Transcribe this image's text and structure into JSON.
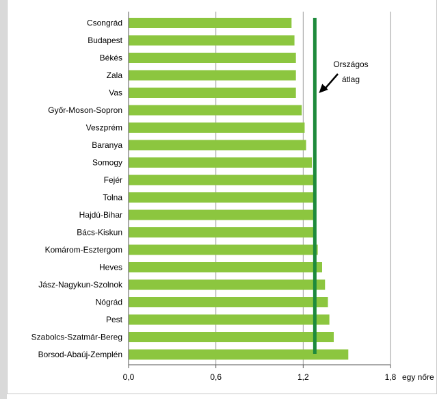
{
  "chart_data": {
    "type": "bar",
    "orientation": "horizontal",
    "categories": [
      "Csongrád",
      "Budapest",
      "Békés",
      "Zala",
      "Vas",
      "Győr-Moson-Sopron",
      "Veszprém",
      "Baranya",
      "Somogy",
      "Fejér",
      "Tolna",
      "Hajdú-Bihar",
      "Bács-Kiskun",
      "Komárom-Esztergom",
      "Heves",
      "Jász-Nagykun-Szolnok",
      "Nógrád",
      "Pest",
      "Szabolcs-Szatmár-Bereg",
      "Borsod-Abaúj-Zemplén"
    ],
    "values": [
      1.12,
      1.14,
      1.15,
      1.15,
      1.15,
      1.19,
      1.21,
      1.22,
      1.26,
      1.28,
      1.28,
      1.29,
      1.29,
      1.3,
      1.33,
      1.35,
      1.37,
      1.38,
      1.41,
      1.51
    ],
    "xlim": [
      0,
      1.8
    ],
    "x_ticks": [
      "0,0",
      "0,6",
      "1,2",
      "1,8"
    ],
    "x_tick_values": [
      0,
      0.6,
      1.2,
      1.8
    ],
    "x_unit": "egy nőre",
    "reference_line": {
      "value": 1.28,
      "label_line1": "Országos",
      "label_line2": "átlag",
      "color": "#1e8a3c"
    },
    "bar_color": "#8cc63f",
    "grid": "vertical"
  }
}
